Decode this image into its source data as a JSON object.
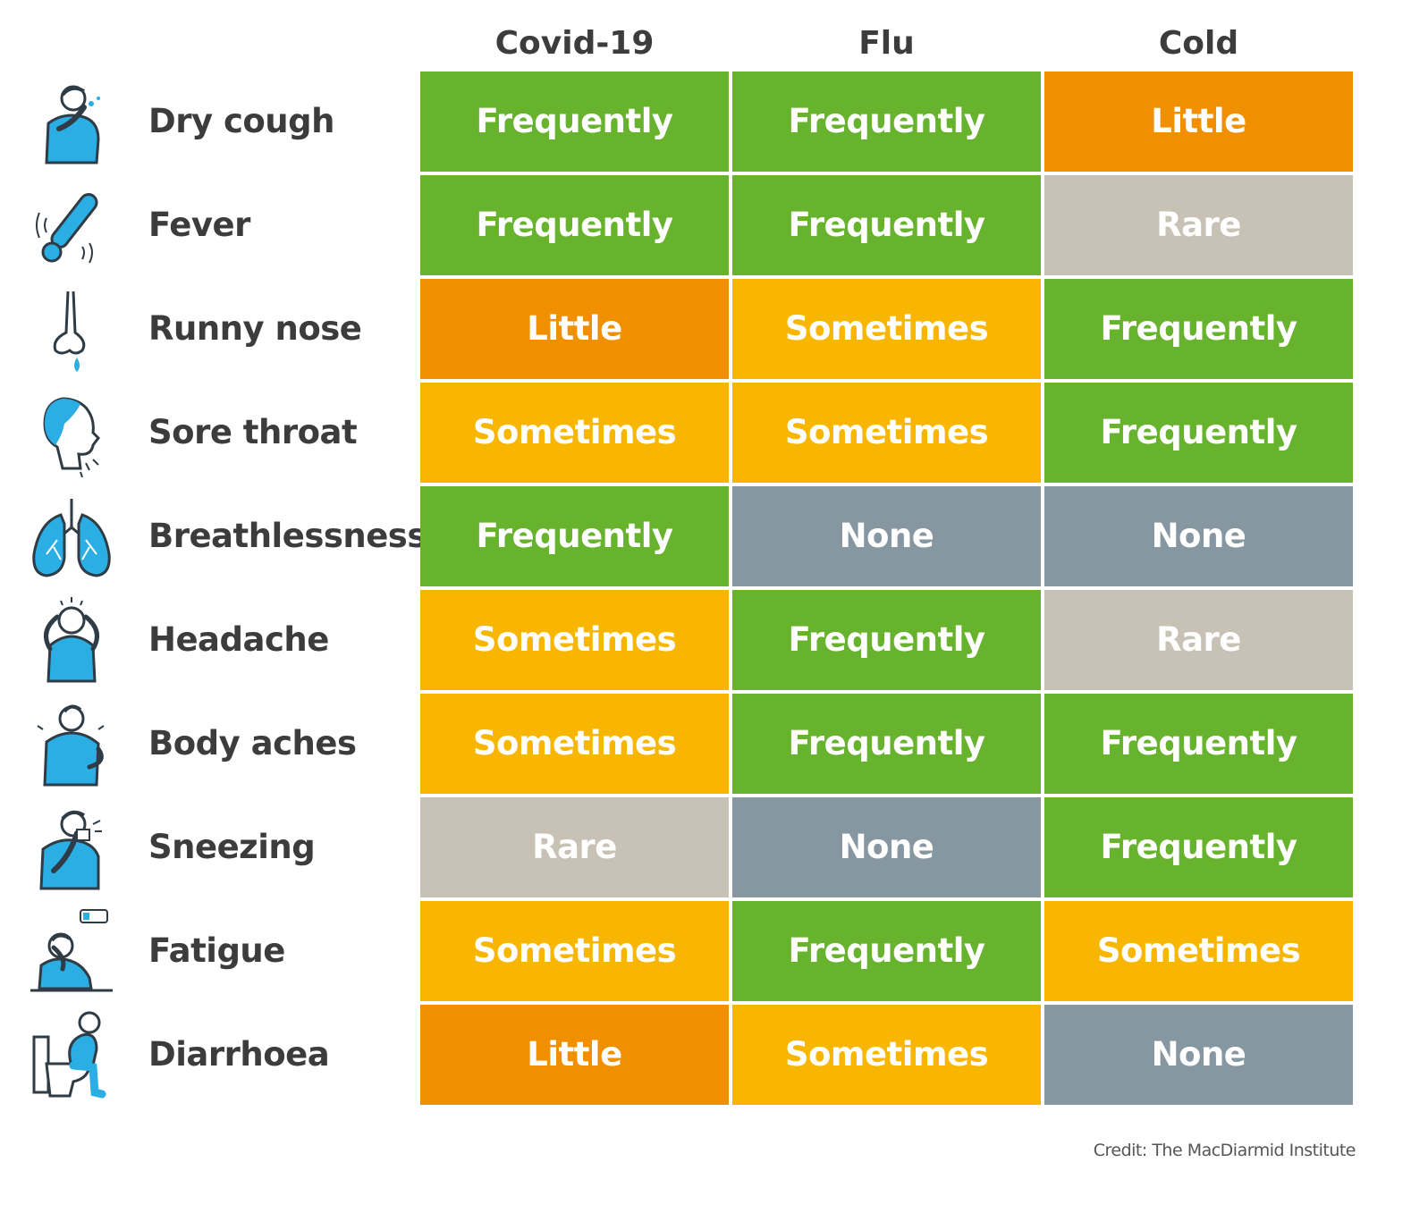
{
  "chart_data": {
    "type": "table",
    "columns": [
      "Covid-19",
      "Flu",
      "Cold"
    ],
    "rows": [
      {
        "symptom": "Dry cough",
        "icon": "coughing-person-icon",
        "values": [
          "Frequently",
          "Frequently",
          "Little"
        ]
      },
      {
        "symptom": "Fever",
        "icon": "thermometer-icon",
        "values": [
          "Frequently",
          "Frequently",
          "Rare"
        ]
      },
      {
        "symptom": "Runny nose",
        "icon": "runny-nose-icon",
        "values": [
          "Little",
          "Sometimes",
          "Frequently"
        ]
      },
      {
        "symptom": "Sore throat",
        "icon": "sore-throat-head-icon",
        "values": [
          "Sometimes",
          "Sometimes",
          "Frequently"
        ]
      },
      {
        "symptom": "Breathlessness",
        "icon": "lungs-icon",
        "values": [
          "Frequently",
          "None",
          "None"
        ]
      },
      {
        "symptom": "Headache",
        "icon": "headache-person-icon",
        "values": [
          "Sometimes",
          "Frequently",
          "Rare"
        ]
      },
      {
        "symptom": "Body aches",
        "icon": "back-pain-person-icon",
        "values": [
          "Sometimes",
          "Frequently",
          "Frequently"
        ]
      },
      {
        "symptom": "Sneezing",
        "icon": "sneezing-person-icon",
        "values": [
          "Rare",
          "None",
          "Frequently"
        ]
      },
      {
        "symptom": "Fatigue",
        "icon": "tired-person-icon",
        "values": [
          "Sometimes",
          "Frequently",
          "Sometimes"
        ]
      },
      {
        "symptom": "Diarrhoea",
        "icon": "person-on-toilet-icon",
        "values": [
          "Little",
          "Sometimes",
          "None"
        ]
      }
    ],
    "legend_colors": {
      "Frequently": "#67b32e",
      "Sometimes": "#f8b600",
      "Little": "#f08f00",
      "Rare": "#c8c1b5",
      "None": "#8797a2"
    }
  },
  "credit": "Credit: The MacDiarmid Institute",
  "colors": {
    "icon_blue": "#2aaee3",
    "icon_stroke": "#2f3b45",
    "text_dark": "#3c3c3c"
  }
}
